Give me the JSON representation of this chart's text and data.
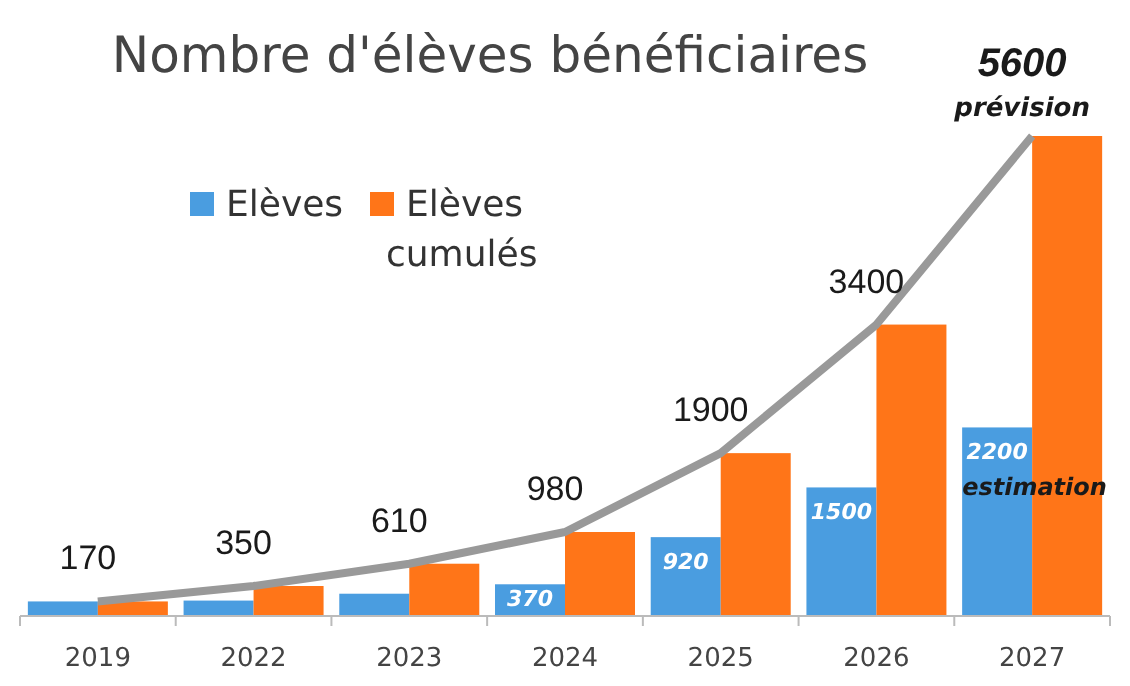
{
  "chart_data": {
    "type": "bar",
    "title": "Nombre d'élèves bénéficiaires",
    "categories": [
      "2019",
      "2022",
      "2023",
      "2024",
      "2025",
      "2026",
      "2027"
    ],
    "series": [
      {
        "name": "Elèves",
        "color": "#4a9de0",
        "values": [
          170,
          180,
          260,
          370,
          920,
          1500,
          2200
        ],
        "value_labels": [
          null,
          null,
          null,
          "370",
          "920",
          "1500",
          "2200"
        ]
      },
      {
        "name": "Elèves cumulés",
        "color": "#ff7518",
        "values": [
          170,
          350,
          610,
          980,
          1900,
          3400,
          5600
        ]
      },
      {
        "type": "line",
        "color": "#999999",
        "marker": "none",
        "values": [
          170,
          350,
          610,
          980,
          1900,
          3400,
          5600
        ],
        "value_labels": [
          "170",
          "350",
          "610",
          "980",
          "1900",
          "3400",
          "5600"
        ]
      }
    ],
    "annotations": [
      {
        "text": "prévision",
        "x": "2027",
        "y": 5600
      },
      {
        "text": "estimation",
        "x": "2027",
        "y": 2200
      }
    ],
    "legend": "top left",
    "grid": false
  }
}
